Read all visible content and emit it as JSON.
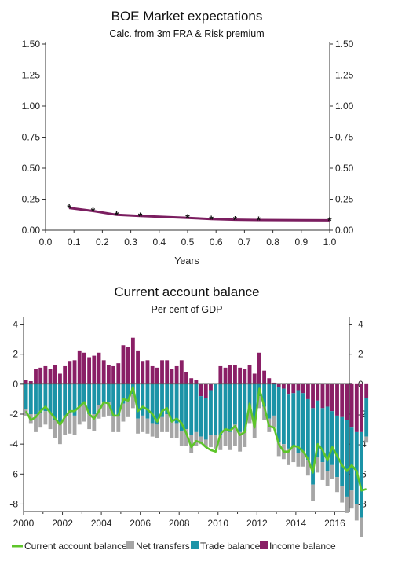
{
  "colors": {
    "line1": "#7b1e60",
    "marker1": "#111111",
    "current_account": "#5ec52a",
    "net_transfers": "#a6a6a6",
    "trade_balance": "#1b93a7",
    "income_balance": "#8a1f66",
    "axis": "#333333"
  },
  "chart_data": [
    {
      "type": "line",
      "title": "BOE Market expectations",
      "subtitle": "Calc. from 3m FRA & Risk premium",
      "xlabel": "Years",
      "ylabel": "",
      "xlim": [
        0,
        1.0
      ],
      "ylim": [
        0,
        1.5
      ],
      "x_ticks": [
        "0.0",
        "0.1",
        "0.2",
        "0.3",
        "0.4",
        "0.5",
        "0.6",
        "0.7",
        "0.8",
        "0.9",
        "1.0"
      ],
      "y_ticks": [
        "0.00",
        "0.25",
        "0.50",
        "0.75",
        "1.00",
        "1.25",
        "1.50"
      ],
      "x": [
        0.083,
        0.167,
        0.25,
        0.333,
        0.5,
        0.583,
        0.667,
        0.75,
        1.0
      ],
      "y": [
        0.18,
        0.155,
        0.125,
        0.115,
        0.1,
        0.09,
        0.085,
        0.082,
        0.08
      ]
    },
    {
      "type": "bar",
      "stacked": true,
      "title": "Current account balance",
      "subtitle": "Per cent of GDP",
      "xlim": [
        2000,
        2016.75
      ],
      "ylim": [
        -8.5,
        4.5
      ],
      "x_ticks": [
        "2000",
        "2002",
        "2004",
        "2006",
        "2008",
        "2010",
        "2012",
        "2014",
        "2016"
      ],
      "y_ticks": [
        "4",
        "2",
        "0",
        "-2",
        "-4",
        "-6",
        "-8"
      ],
      "legend": [
        "Current account balance",
        "Net transfers",
        "Trade balance",
        "Income balance"
      ],
      "legend_position": "bottom",
      "start_quarter": "2000-Q1",
      "income_balance": [
        0.3,
        0.2,
        1.0,
        1.1,
        1.2,
        1.0,
        1.3,
        0.7,
        1.2,
        1.5,
        1.6,
        2.2,
        2.1,
        1.8,
        1.9,
        2.1,
        1.6,
        1.3,
        1.2,
        1.4,
        2.6,
        2.5,
        3.1,
        2.2,
        1.5,
        1.6,
        1.2,
        1.1,
        1.6,
        1.6,
        1.0,
        1.2,
        1.6,
        0.8,
        0.4,
        0.3,
        -0.8,
        -0.9,
        -0.4,
        0.0,
        1.2,
        1.1,
        1.3,
        1.3,
        1.1,
        1.0,
        1.3,
        0.7,
        2.1,
        0.9,
        0.4,
        0.1,
        -0.2,
        -0.3,
        -0.7,
        -0.6,
        -0.4,
        -0.6,
        -1.0,
        -1.6,
        -1.1,
        -1.6,
        -1.5,
        -1.8,
        -2.1,
        -2.2,
        -2.4,
        -2.9,
        -3.2,
        -3.2,
        -0.9
      ],
      "trade_balance": [
        -1.7,
        -2.0,
        -2.0,
        -1.9,
        -1.8,
        -1.9,
        -2.4,
        -2.6,
        -2.1,
        -1.9,
        -2.1,
        -1.5,
        -1.3,
        -2.0,
        -2.0,
        -1.4,
        -1.2,
        -1.2,
        -2.1,
        -2.1,
        -1.3,
        -1.1,
        -0.7,
        -2.3,
        -2.1,
        -2.3,
        -2.6,
        -2.7,
        -2.2,
        -2.0,
        -2.5,
        -2.6,
        -3.1,
        -3.0,
        -3.4,
        -3.2,
        -2.7,
        -2.8,
        -3.0,
        -3.4,
        -3.4,
        -3.1,
        -3.2,
        -2.7,
        -3.2,
        -3.1,
        -1.7,
        -2.5,
        -0.8,
        -1.5,
        -2.3,
        -2.1,
        -3.7,
        -3.7,
        -3.6,
        -3.6,
        -4.2,
        -3.9,
        -4.1,
        -5.1,
        -3.8,
        -3.6,
        -4.3,
        -3.6,
        -4.1,
        -4.6,
        -5.1,
        -4.2,
        -4.8,
        -5.7,
        -2.6
      ],
      "net_transfers": [
        -0.4,
        -0.6,
        -1.2,
        -1.0,
        -0.9,
        -1.1,
        -1.2,
        -1.4,
        -1.3,
        -1.4,
        -1.3,
        -1.2,
        -1.2,
        -1.0,
        -1.1,
        -0.9,
        -1.0,
        -0.9,
        -1.1,
        -1.1,
        -1.2,
        -1.1,
        -0.9,
        -1.0,
        -1.1,
        -1.0,
        -0.9,
        -0.9,
        -1.0,
        -1.2,
        -1.1,
        -1.0,
        -1.0,
        -1.1,
        -1.2,
        -0.9,
        -0.5,
        -0.5,
        -0.8,
        -0.9,
        -1.0,
        -1.0,
        -1.2,
        -1.4,
        -1.3,
        -1.1,
        -0.9,
        -1.1,
        -0.8,
        -0.9,
        -0.9,
        -0.8,
        -0.9,
        -1.0,
        -1.1,
        -1.0,
        -0.9,
        -1.0,
        -1.0,
        -1.1,
        -1.0,
        -1.2,
        -1.0,
        -0.9,
        -1.0,
        -1.1,
        -1.1,
        -1.2,
        -1.1,
        -1.3,
        -0.4
      ],
      "current_account": [
        -1.8,
        -2.4,
        -2.2,
        -1.8,
        -1.5,
        -1.9,
        -2.3,
        -2.7,
        -2.2,
        -1.8,
        -1.8,
        -1.5,
        -1.2,
        -2.0,
        -2.3,
        -1.8,
        -1.2,
        -1.3,
        -2.1,
        -2.1,
        -1.0,
        -1.1,
        -0.2,
        -1.8,
        -1.5,
        -1.7,
        -2.0,
        -2.5,
        -1.8,
        -1.6,
        -2.5,
        -2.3,
        -2.6,
        -3.3,
        -4.2,
        -3.8,
        -3.9,
        -4.2,
        -4.4,
        -4.5,
        -3.3,
        -3.0,
        -3.1,
        -2.8,
        -3.4,
        -3.2,
        -1.3,
        -2.9,
        -0.3,
        -1.5,
        -2.8,
        -2.9,
        -4.0,
        -4.5,
        -4.5,
        -4.1,
        -4.2,
        -4.5,
        -5.0,
        -5.9,
        -4.0,
        -4.4,
        -5.1,
        -4.2,
        -4.8,
        -5.4,
        -5.8,
        -5.4,
        -5.8,
        -7.1,
        -7.0
      ]
    }
  ]
}
